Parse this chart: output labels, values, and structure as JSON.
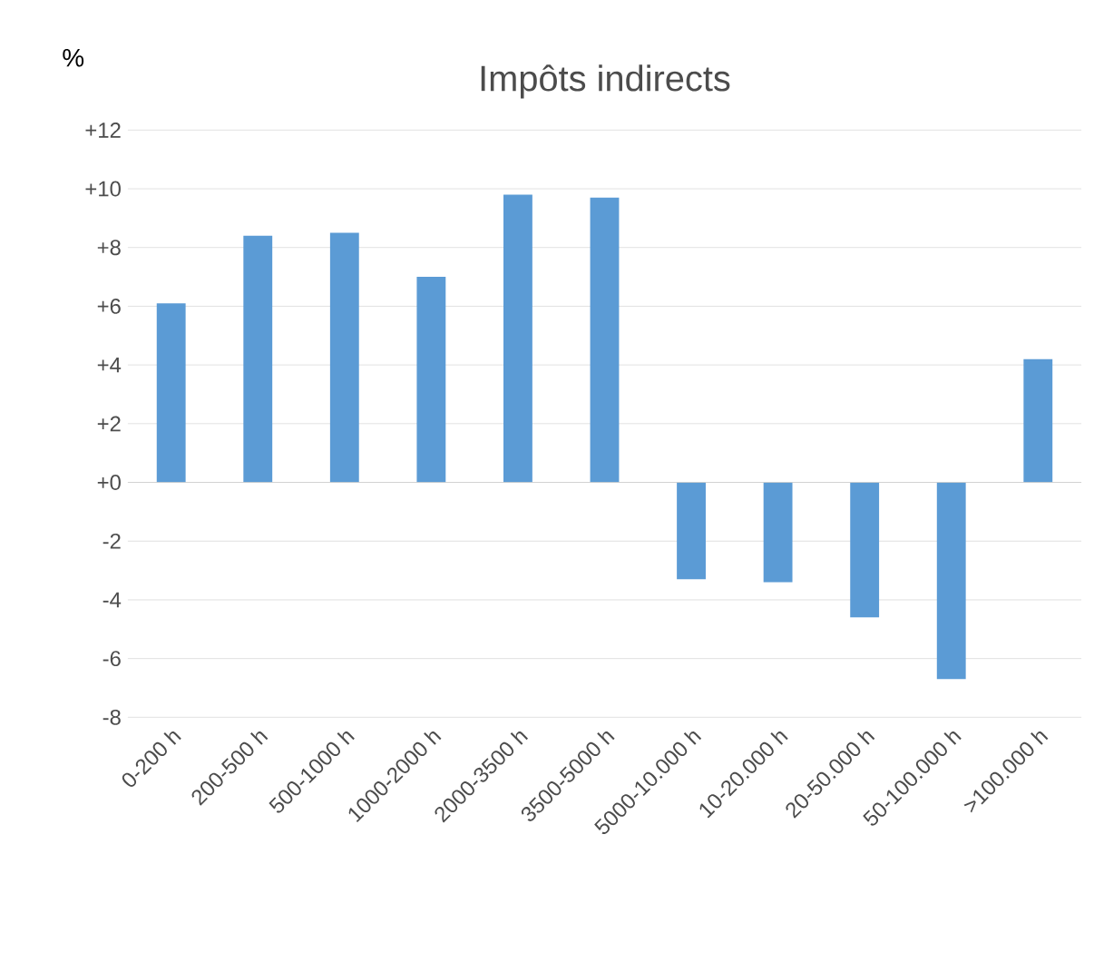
{
  "chart_data": {
    "type": "bar",
    "title": "Impôts indirects",
    "ylabel": "%",
    "categories": [
      "0-200 h",
      "200-500 h",
      "500-1000 h",
      "1000-2000 h",
      "2000-3500 h",
      "3500-5000 h",
      "5000-10.000 h",
      "10-20.000 h",
      "20-50.000 h",
      "50-100.000 h",
      ">100.000 h"
    ],
    "values": [
      6.1,
      8.4,
      8.5,
      7.0,
      9.8,
      9.7,
      -3.3,
      -3.4,
      -4.6,
      -6.7,
      4.2
    ],
    "color": "#5b9bd5",
    "ylim": [
      -8,
      12
    ],
    "yticks": [
      -8,
      -6,
      -4,
      -2,
      {
        "value": 0,
        "label": "+0"
      },
      {
        "value": 2,
        "label": "+2"
      },
      {
        "value": 4,
        "label": "+4"
      },
      {
        "value": 6,
        "label": "+6"
      },
      {
        "value": 8,
        "label": "+8"
      },
      {
        "value": 10,
        "label": "+10"
      },
      {
        "value": 12,
        "label": "+12"
      }
    ],
    "grid": "y"
  }
}
